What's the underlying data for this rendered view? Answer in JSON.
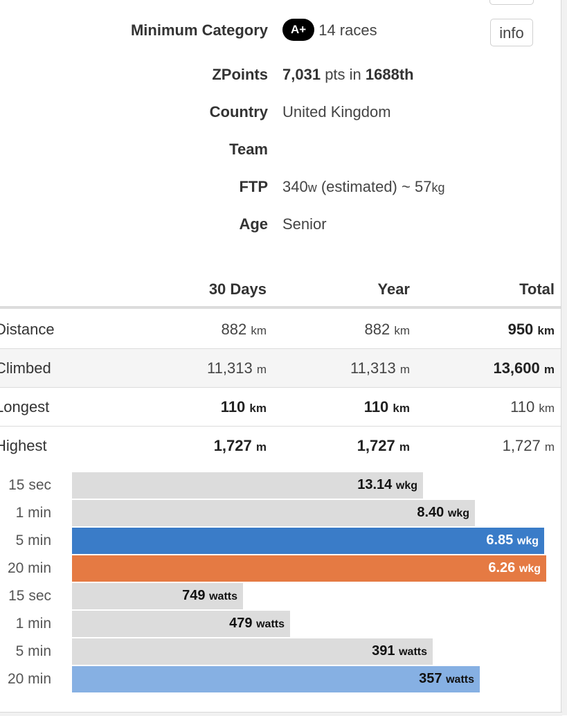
{
  "profile": {
    "min_category": {
      "label": "Minimum Category",
      "badge": "A+",
      "value": "14 races",
      "info_button": "info"
    },
    "zpoints": {
      "label": "ZPoints",
      "points": "7,031",
      "mid": "pts in",
      "rank": "1688th"
    },
    "country": {
      "label": "Country",
      "value": "United Kingdom"
    },
    "team": {
      "label": "Team",
      "value": ""
    },
    "ftp": {
      "label": "FTP",
      "watts": "340",
      "watts_unit": "w",
      "note": "(estimated) ~",
      "weight": "57",
      "weight_unit": "kg"
    },
    "age": {
      "label": "Age",
      "value": "Senior"
    }
  },
  "stats": {
    "headers": [
      "30 Days",
      "Year",
      "Total"
    ],
    "rows": [
      {
        "label": "Distance",
        "cells": [
          {
            "v": "882",
            "u": "km"
          },
          {
            "v": "882",
            "u": "km"
          },
          {
            "v": "950",
            "u": "km"
          }
        ]
      },
      {
        "label": "Climbed",
        "cells": [
          {
            "v": "11,313",
            "u": "m"
          },
          {
            "v": "11,313",
            "u": "m"
          },
          {
            "v": "13,600",
            "u": "m"
          }
        ]
      },
      {
        "label": "Longest",
        "cells": [
          {
            "v": "110",
            "u": "km"
          },
          {
            "v": "110",
            "u": "km"
          },
          {
            "v": "110",
            "u": "km"
          }
        ]
      },
      {
        "label": "Highest",
        "cells": [
          {
            "v": "1,727",
            "u": "m"
          },
          {
            "v": "1,727",
            "u": "m"
          },
          {
            "v": "1,727",
            "u": "m"
          }
        ]
      }
    ]
  },
  "power": {
    "wkg": [
      {
        "label": "15 sec",
        "value": "13.14",
        "unit": "wkg",
        "fill": 0.74
      },
      {
        "label": "1 min",
        "value": "8.40",
        "unit": "wkg",
        "fill": 0.85
      },
      {
        "label": "5 min",
        "value": "6.85",
        "unit": "wkg",
        "fill": 0.995
      },
      {
        "label": "20 min",
        "value": "6.26",
        "unit": "wkg",
        "fill": 1.0
      }
    ],
    "watts": [
      {
        "label": "15 sec",
        "value": "749",
        "unit": "watts",
        "fill": 0.36
      },
      {
        "label": "1 min",
        "value": "479",
        "unit": "watts",
        "fill": 0.46
      },
      {
        "label": "5 min",
        "value": "391",
        "unit": "watts",
        "fill": 0.76
      },
      {
        "label": "20 min",
        "value": "357",
        "unit": "watts",
        "fill": 0.86
      }
    ]
  },
  "colors": {
    "bar_default": "#dcdcdc",
    "bar_blue": "#3a7cc8",
    "bar_orange": "#e57a43",
    "bar_lightblue": "#86b0e3",
    "badge": "#000000"
  }
}
